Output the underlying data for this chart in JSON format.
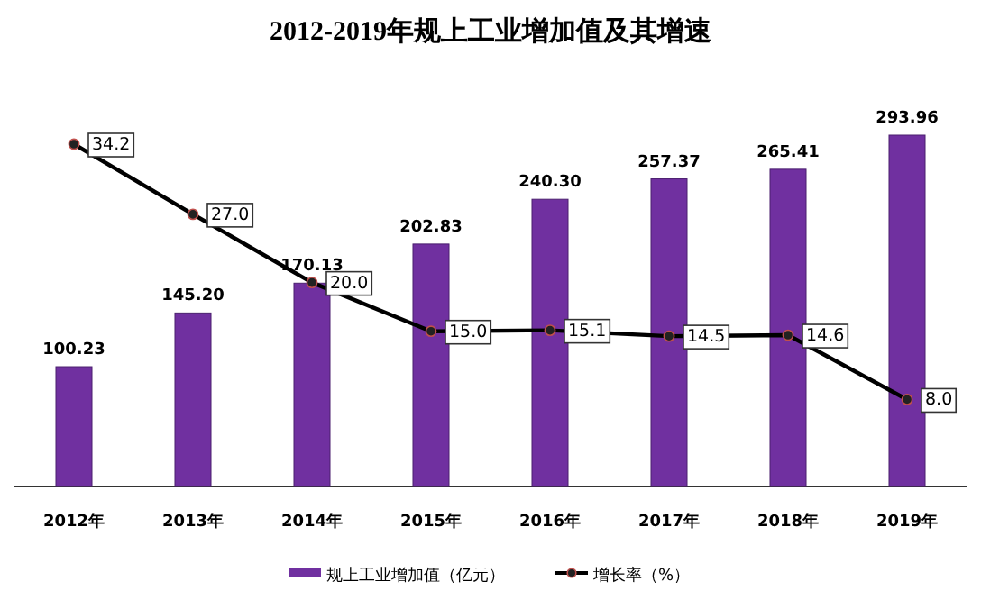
{
  "chart_data": {
    "type": "bar",
    "title": "2012-2019年规上工业增加值及其增速",
    "categories": [
      "2012年",
      "2013年",
      "2014年",
      "2015年",
      "2016年",
      "2017年",
      "2018年",
      "2019年"
    ],
    "series": [
      {
        "name": "规上工业增加值（亿元）",
        "color": "#7030a0",
        "values": [
          100.23,
          145.2,
          170.13,
          202.83,
          240.3,
          257.37,
          265.41,
          293.96
        ],
        "value_labels": [
          "100.23",
          "145.20",
          "170.13",
          "202.83",
          "240.30",
          "257.37",
          "265.41",
          "293.96"
        ]
      },
      {
        "name": "增长率（%）",
        "type": "line",
        "axis": "y2",
        "color": "#000000",
        "marker": "circle",
        "values": [
          34.2,
          27.0,
          20.0,
          15.0,
          15.1,
          14.5,
          14.6,
          8.0
        ],
        "value_labels": [
          "34.2",
          "27.0",
          "20.0",
          "15.0",
          "15.1",
          "14.5",
          "14.6",
          "8.0"
        ]
      }
    ],
    "legend": "bottom"
  }
}
